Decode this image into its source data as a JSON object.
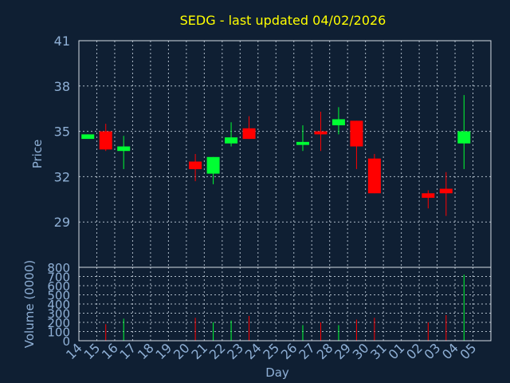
{
  "colors": {
    "background": "#0f1f33",
    "title": "#ffff00",
    "up": "#00ff33",
    "down": "#ff0000",
    "text": "#8fb0d6"
  },
  "chart_data": {
    "type": "candlestick",
    "title": "SEDG - last updated 04/02/2026",
    "xlabel": "Day",
    "ylabel_price": "Price",
    "ylabel_volume": "Volume (0000)",
    "x_ticks": [
      "14",
      "15",
      "16",
      "17",
      "18",
      "19",
      "20",
      "21",
      "22",
      "23",
      "24",
      "25",
      "26",
      "27",
      "28",
      "29",
      "30",
      "31",
      "01",
      "02",
      "03",
      "04",
      "05"
    ],
    "price_ticks": [
      "41",
      "38",
      "35",
      "32",
      "29"
    ],
    "price_ylim": [
      26,
      41
    ],
    "volume_ticks": [
      "800",
      "700",
      "600",
      "500",
      "400",
      "300",
      "200",
      "100",
      "0"
    ],
    "volume_ylim": [
      0,
      800
    ],
    "grid": true,
    "candles": [
      {
        "day": "14",
        "open": 34.5,
        "close": 34.8,
        "high": 34.8,
        "low": 34.5,
        "volume": 0
      },
      {
        "day": "15",
        "open": 35.0,
        "close": 33.8,
        "high": 35.5,
        "low": 33.7,
        "volume": 180
      },
      {
        "day": "16",
        "open": 33.7,
        "close": 34.0,
        "high": 34.7,
        "low": 32.5,
        "volume": 240
      },
      {
        "day": "20",
        "open": 33.0,
        "close": 32.5,
        "high": 33.5,
        "low": 31.7,
        "volume": 250
      },
      {
        "day": "21",
        "open": 32.2,
        "close": 33.3,
        "high": 33.3,
        "low": 31.5,
        "volume": 200
      },
      {
        "day": "22",
        "open": 34.2,
        "close": 34.6,
        "high": 35.6,
        "low": 34.0,
        "volume": 220
      },
      {
        "day": "23",
        "open": 35.2,
        "close": 34.5,
        "high": 36.0,
        "low": 34.5,
        "volume": 270
      },
      {
        "day": "26",
        "open": 34.1,
        "close": 34.3,
        "high": 35.4,
        "low": 33.7,
        "volume": 170
      },
      {
        "day": "27",
        "open": 35.0,
        "close": 34.8,
        "high": 36.3,
        "low": 33.7,
        "volume": 200
      },
      {
        "day": "28",
        "open": 35.4,
        "close": 35.8,
        "high": 36.6,
        "low": 34.8,
        "volume": 170
      },
      {
        "day": "29",
        "open": 35.7,
        "close": 34.0,
        "high": 35.7,
        "low": 32.5,
        "volume": 230
      },
      {
        "day": "30",
        "open": 33.2,
        "close": 30.9,
        "high": 33.5,
        "low": 30.9,
        "volume": 250
      },
      {
        "day": "02",
        "open": 30.9,
        "close": 30.6,
        "high": 31.1,
        "low": 29.9,
        "volume": 200
      },
      {
        "day": "03",
        "open": 31.2,
        "close": 30.9,
        "high": 32.3,
        "low": 29.4,
        "volume": 280
      },
      {
        "day": "04",
        "open": 34.2,
        "close": 35.0,
        "high": 37.4,
        "low": 32.5,
        "volume": 720
      }
    ]
  }
}
